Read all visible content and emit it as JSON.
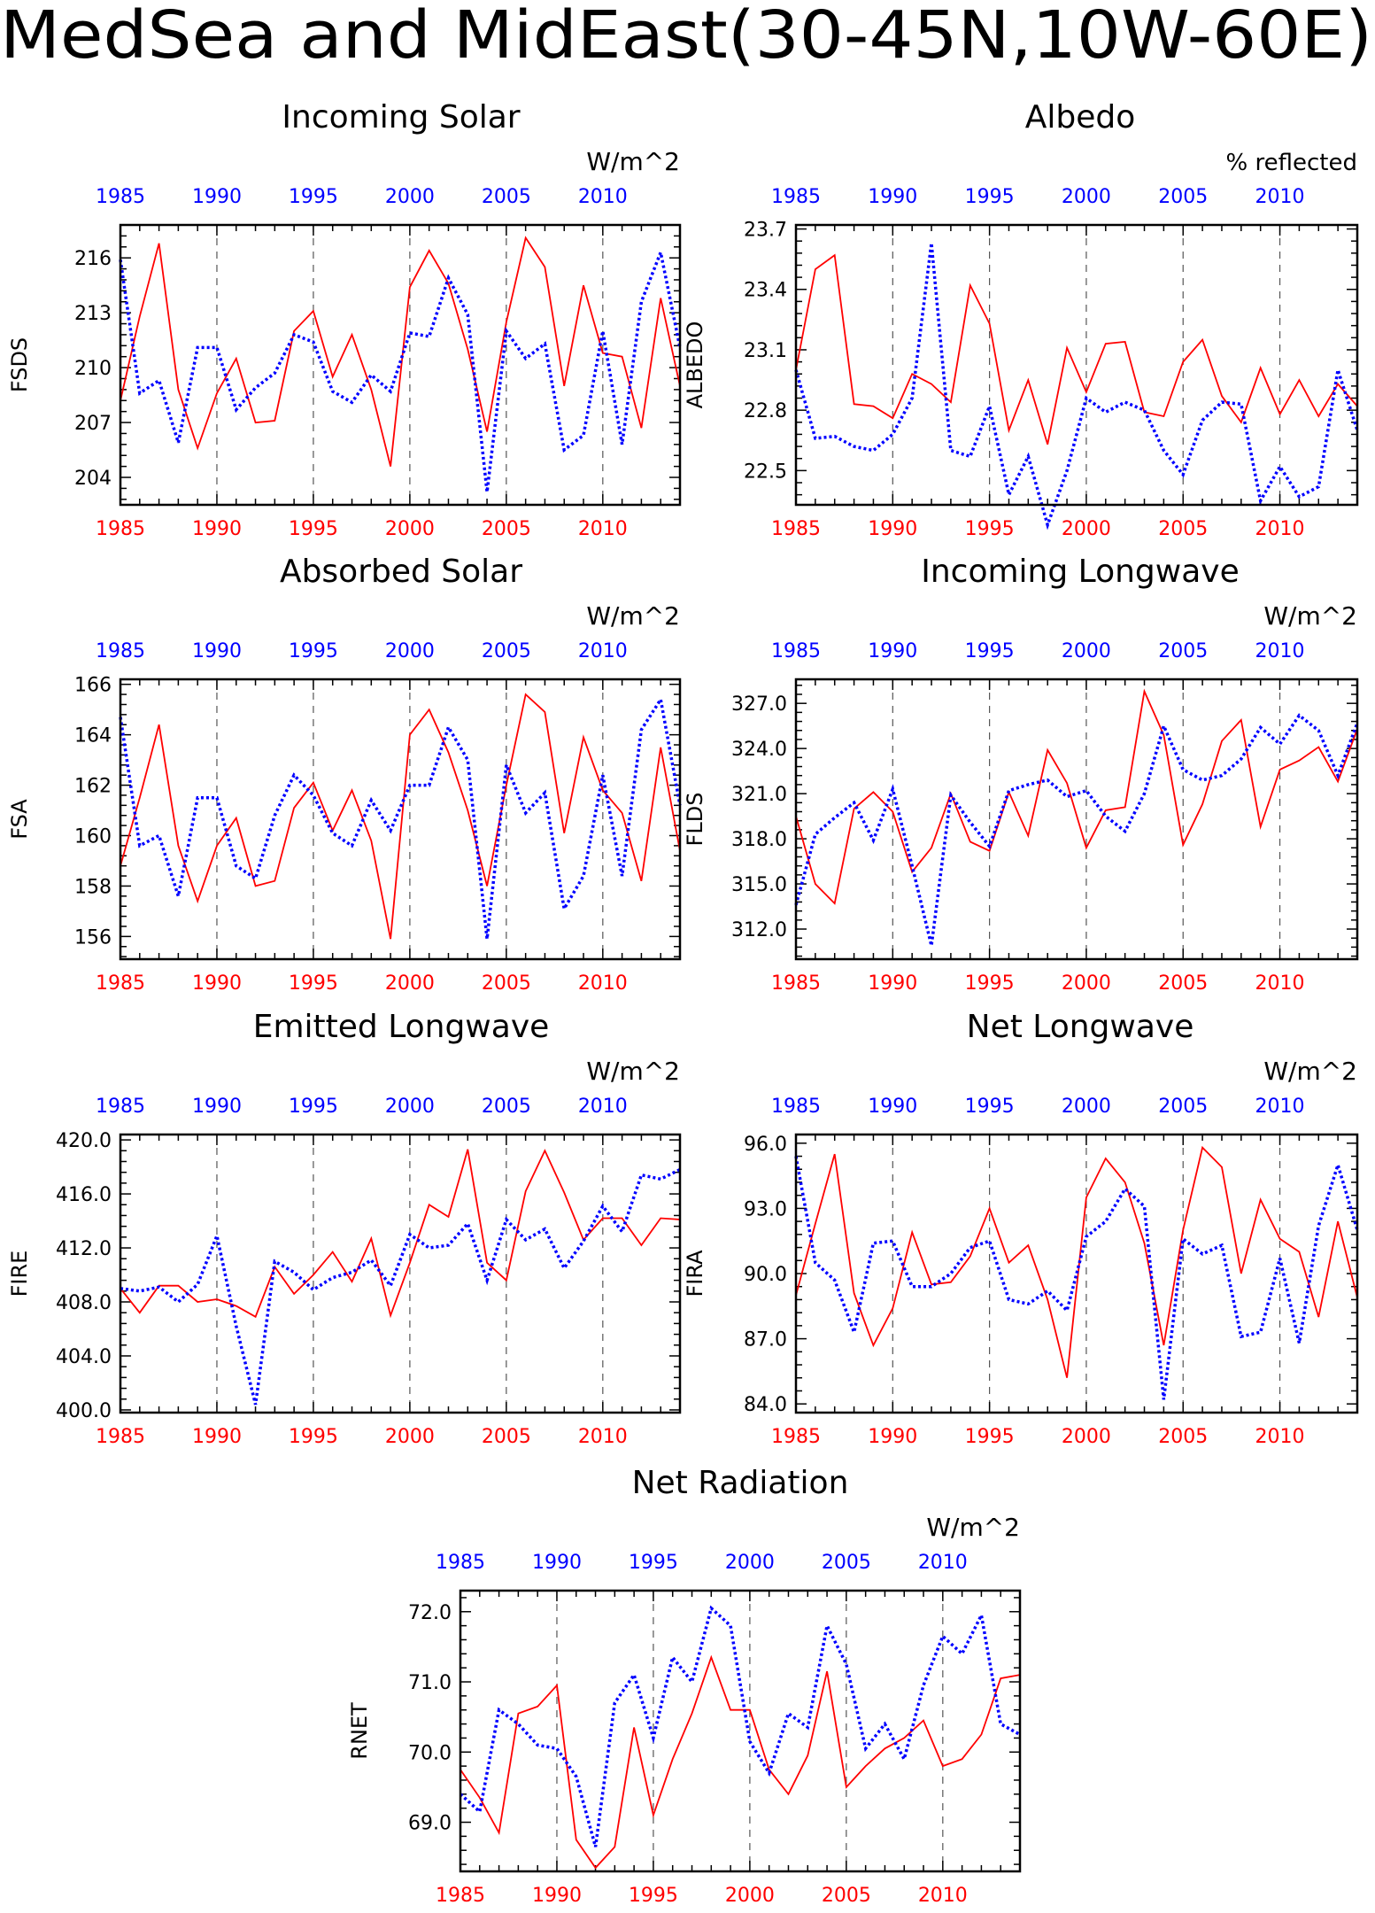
{
  "page_title": "MedSea and MidEast(30-45N,10W-60E)",
  "colors": {
    "red_series": "#ff0000",
    "blue_series": "#0000ff",
    "axis": "#000000"
  },
  "chart_data": [
    {
      "type": "line",
      "title": "Incoming Solar",
      "units": "W/m^2",
      "ylabel": "FSDS",
      "ylim": [
        202.5,
        217.8
      ],
      "yticks": [
        "204",
        "207",
        "210",
        "213",
        "216"
      ],
      "x": [
        1985,
        1986,
        1987,
        1988,
        1989,
        1990,
        1991,
        1992,
        1993,
        1994,
        1995,
        1996,
        1997,
        1998,
        1999,
        2000,
        2001,
        2002,
        2003,
        2004,
        2005,
        2006,
        2007,
        2008,
        2009,
        2010,
        2011,
        2012,
        2013,
        2014
      ],
      "series": [
        {
          "color": "red",
          "values": [
            208.2,
            212.8,
            216.8,
            208.8,
            205.6,
            208.6,
            210.5,
            207.0,
            207.1,
            212.0,
            213.1,
            209.5,
            211.8,
            208.8,
            204.6,
            214.4,
            216.4,
            214.6,
            211.0,
            206.5,
            212.5,
            217.1,
            215.5,
            209.0,
            214.5,
            210.8,
            210.6,
            206.7,
            213.8,
            209.0
          ]
        },
        {
          "color": "blue",
          "values": [
            215.9,
            208.6,
            209.3,
            205.9,
            211.1,
            211.1,
            207.7,
            208.9,
            209.7,
            211.8,
            211.4,
            208.7,
            208.1,
            209.6,
            208.7,
            211.9,
            211.7,
            214.9,
            212.9,
            203.2,
            212.0,
            210.5,
            211.3,
            205.5,
            206.3,
            212.0,
            205.8,
            213.6,
            216.3,
            211.1
          ]
        }
      ]
    },
    {
      "type": "line",
      "title": "Albedo",
      "units": "% reflected",
      "ylabel": "ALBEDO",
      "ylim": [
        22.33,
        23.72
      ],
      "yticks": [
        "22.5",
        "22.8",
        "23.1",
        "23.4",
        "23.7"
      ],
      "x": [
        1985,
        1986,
        1987,
        1988,
        1989,
        1990,
        1991,
        1992,
        1993,
        1994,
        1995,
        1996,
        1997,
        1998,
        1999,
        2000,
        2001,
        2002,
        2003,
        2004,
        2005,
        2006,
        2007,
        2008,
        2009,
        2010,
        2011,
        2012,
        2013,
        2014
      ],
      "series": [
        {
          "color": "red",
          "values": [
            23.0,
            23.5,
            23.57,
            22.83,
            22.82,
            22.76,
            22.98,
            22.93,
            22.84,
            23.42,
            23.23,
            22.7,
            22.95,
            22.63,
            23.11,
            22.89,
            23.13,
            23.14,
            22.79,
            22.77,
            23.04,
            23.15,
            22.87,
            22.74,
            23.01,
            22.78,
            22.95,
            22.77,
            22.93,
            22.82
          ]
        },
        {
          "color": "blue",
          "values": [
            23.0,
            22.66,
            22.67,
            22.62,
            22.6,
            22.68,
            22.86,
            23.63,
            22.6,
            22.57,
            22.82,
            22.38,
            22.57,
            22.23,
            22.5,
            22.86,
            22.79,
            22.84,
            22.8,
            22.6,
            22.48,
            22.75,
            22.84,
            22.83,
            22.35,
            22.52,
            22.37,
            22.42,
            23.0,
            22.7
          ]
        }
      ]
    },
    {
      "type": "line",
      "title": "Absorbed Solar",
      "units": "W/m^2",
      "ylabel": "FSA",
      "ylim": [
        155.1,
        166.2
      ],
      "yticks": [
        "156",
        "158",
        "160",
        "162",
        "164",
        "166"
      ],
      "x": [
        1985,
        1986,
        1987,
        1988,
        1989,
        1990,
        1991,
        1992,
        1993,
        1994,
        1995,
        1996,
        1997,
        1998,
        1999,
        2000,
        2001,
        2002,
        2003,
        2004,
        2005,
        2006,
        2007,
        2008,
        2009,
        2010,
        2011,
        2012,
        2013,
        2014
      ],
      "series": [
        {
          "color": "red",
          "values": [
            158.8,
            161.5,
            164.4,
            159.6,
            157.4,
            159.6,
            160.7,
            158.0,
            158.2,
            161.1,
            162.1,
            160.2,
            161.8,
            159.8,
            155.9,
            164.0,
            165.0,
            163.3,
            161.0,
            158.0,
            162.0,
            165.6,
            164.9,
            160.1,
            163.9,
            161.8,
            160.9,
            158.2,
            163.5,
            159.4
          ]
        },
        {
          "color": "blue",
          "values": [
            164.7,
            159.6,
            160.0,
            157.6,
            161.5,
            161.5,
            158.8,
            158.3,
            160.8,
            162.4,
            161.6,
            160.1,
            159.6,
            161.4,
            160.2,
            162.0,
            162.0,
            164.3,
            163.0,
            155.9,
            162.8,
            160.9,
            161.7,
            157.1,
            158.4,
            162.4,
            158.4,
            164.2,
            165.4,
            161.2
          ]
        }
      ]
    },
    {
      "type": "line",
      "title": "Incoming Longwave",
      "units": "W/m^2",
      "ylabel": "FLDS",
      "ylim": [
        310.0,
        328.6
      ],
      "yticks": [
        "312.0",
        "315.0",
        "318.0",
        "321.0",
        "324.0",
        "327.0"
      ],
      "x": [
        1985,
        1986,
        1987,
        1988,
        1989,
        1990,
        1991,
        1992,
        1993,
        1994,
        1995,
        1996,
        1997,
        1998,
        1999,
        2000,
        2001,
        2002,
        2003,
        2004,
        2005,
        2006,
        2007,
        2008,
        2009,
        2010,
        2011,
        2012,
        2013,
        2014
      ],
      "series": [
        {
          "color": "red",
          "values": [
            319.5,
            315.0,
            313.7,
            320.0,
            321.1,
            319.8,
            315.8,
            317.4,
            321.0,
            317.8,
            317.2,
            321.1,
            318.2,
            323.9,
            321.7,
            317.4,
            319.9,
            320.1,
            327.8,
            324.9,
            317.6,
            320.3,
            324.5,
            325.9,
            318.8,
            322.6,
            323.2,
            324.1,
            321.8,
            325.3
          ]
        },
        {
          "color": "blue",
          "values": [
            313.6,
            318.3,
            319.4,
            320.4,
            317.9,
            321.3,
            316.2,
            310.9,
            320.9,
            319.1,
            317.5,
            321.2,
            321.6,
            321.9,
            320.8,
            321.2,
            319.5,
            318.5,
            321.0,
            325.5,
            322.6,
            321.9,
            322.2,
            323.3,
            325.4,
            324.3,
            326.2,
            325.2,
            322.2,
            325.7
          ]
        }
      ]
    },
    {
      "type": "line",
      "title": "Emitted Longwave",
      "units": "W/m^2",
      "ylabel": "FIRE",
      "ylim": [
        399.8,
        420.4
      ],
      "yticks": [
        "400.0",
        "404.0",
        "408.0",
        "412.0",
        "416.0",
        "420.0"
      ],
      "x": [
        1985,
        1986,
        1987,
        1988,
        1989,
        1990,
        1991,
        1992,
        1993,
        1994,
        1995,
        1996,
        1997,
        1998,
        1999,
        2000,
        2001,
        2002,
        2003,
        2004,
        2005,
        2006,
        2007,
        2008,
        2009,
        2010,
        2011,
        2012,
        2013,
        2014
      ],
      "series": [
        {
          "color": "red",
          "values": [
            409.0,
            407.2,
            409.2,
            409.2,
            408.0,
            408.2,
            407.7,
            406.9,
            410.6,
            408.6,
            410.0,
            411.7,
            409.5,
            412.7,
            407.0,
            410.9,
            415.2,
            414.3,
            419.3,
            410.9,
            409.6,
            416.2,
            419.2,
            416.1,
            412.6,
            414.2,
            414.2,
            412.2,
            414.2,
            414.1
          ]
        },
        {
          "color": "blue",
          "values": [
            409.0,
            408.8,
            409.1,
            408.0,
            409.3,
            412.9,
            406.2,
            400.4,
            411.0,
            410.2,
            408.9,
            409.8,
            410.2,
            411.1,
            409.2,
            413.0,
            412.0,
            412.2,
            413.8,
            409.6,
            414.1,
            412.6,
            413.4,
            410.5,
            412.5,
            415.1,
            413.2,
            417.4,
            417.1,
            417.8
          ]
        }
      ]
    },
    {
      "type": "line",
      "title": "Net Longwave",
      "units": "W/m^2",
      "ylabel": "FIRA",
      "ylim": [
        83.6,
        96.4
      ],
      "yticks": [
        "84.0",
        "87.0",
        "90.0",
        "93.0",
        "96.0"
      ],
      "x": [
        1985,
        1986,
        1987,
        1988,
        1989,
        1990,
        1991,
        1992,
        1993,
        1994,
        1995,
        1996,
        1997,
        1998,
        1999,
        2000,
        2001,
        2002,
        2003,
        2004,
        2005,
        2006,
        2007,
        2008,
        2009,
        2010,
        2011,
        2012,
        2013,
        2014
      ],
      "series": [
        {
          "color": "red",
          "values": [
            89.0,
            92.3,
            95.5,
            89.1,
            86.7,
            88.4,
            91.9,
            89.5,
            89.6,
            90.8,
            93.0,
            90.5,
            91.3,
            88.8,
            85.2,
            93.5,
            95.3,
            94.2,
            91.4,
            86.7,
            92.0,
            95.8,
            94.9,
            90.0,
            93.4,
            91.6,
            91.0,
            88.0,
            92.4,
            88.9
          ]
        },
        {
          "color": "blue",
          "values": [
            95.4,
            90.5,
            89.7,
            87.3,
            91.4,
            91.5,
            89.4,
            89.4,
            90.0,
            91.2,
            91.5,
            88.8,
            88.6,
            89.2,
            88.3,
            91.7,
            92.4,
            93.9,
            93.1,
            84.2,
            91.6,
            90.9,
            91.3,
            87.1,
            87.3,
            90.7,
            86.8,
            92.2,
            95.0,
            92.0
          ]
        }
      ]
    },
    {
      "type": "line",
      "title": "Net Radiation",
      "units": "W/m^2",
      "ylabel": "RNET",
      "ylim": [
        68.3,
        72.3
      ],
      "yticks": [
        "69.0",
        "70.0",
        "71.0",
        "72.0"
      ],
      "x": [
        1985,
        1986,
        1987,
        1988,
        1989,
        1990,
        1991,
        1992,
        1993,
        1994,
        1995,
        1996,
        1997,
        1998,
        1999,
        2000,
        2001,
        2002,
        2003,
        2004,
        2005,
        2006,
        2007,
        2008,
        2009,
        2010,
        2011,
        2012,
        2013,
        2014
      ],
      "series": [
        {
          "color": "red",
          "values": [
            69.75,
            69.35,
            68.85,
            70.55,
            70.65,
            70.95,
            68.75,
            68.35,
            68.65,
            70.35,
            69.1,
            69.9,
            70.55,
            71.35,
            70.6,
            70.6,
            69.75,
            69.4,
            69.95,
            71.15,
            69.5,
            69.8,
            70.05,
            70.2,
            70.45,
            69.8,
            69.9,
            70.25,
            71.05,
            71.1
          ]
        },
        {
          "color": "blue",
          "values": [
            69.4,
            69.15,
            70.6,
            70.4,
            70.1,
            70.05,
            69.65,
            68.65,
            70.7,
            71.1,
            70.2,
            71.35,
            71.0,
            72.05,
            71.8,
            70.15,
            69.7,
            70.55,
            70.35,
            71.8,
            71.25,
            70.05,
            70.4,
            69.9,
            70.95,
            71.65,
            71.4,
            71.95,
            70.4,
            70.25
          ]
        }
      ]
    }
  ]
}
